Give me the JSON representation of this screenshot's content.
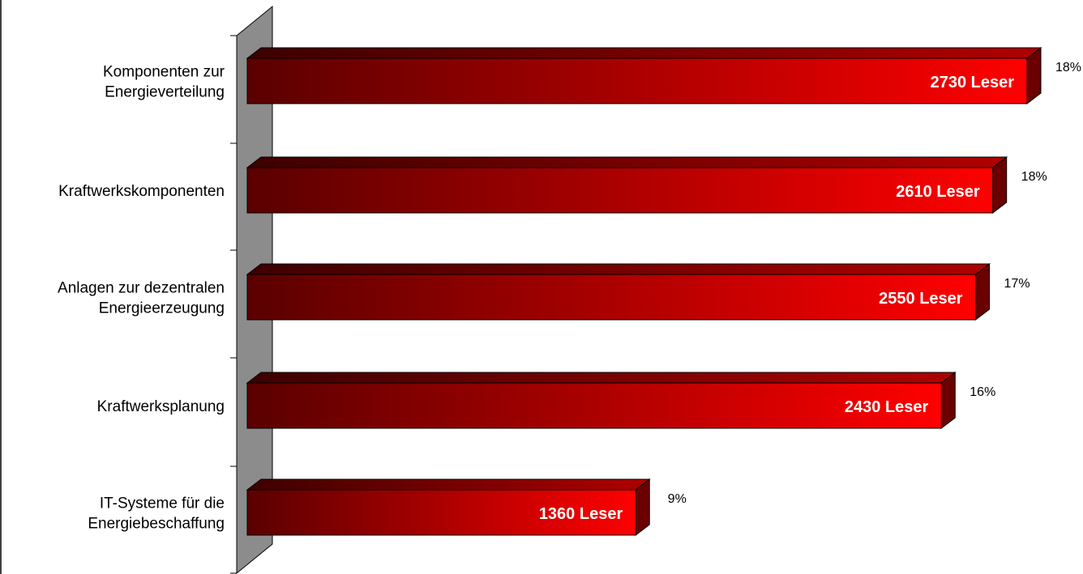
{
  "chart_data": {
    "type": "bar",
    "orientation": "horizontal",
    "style": "3d",
    "categories": [
      [
        "Komponenten zur",
        "Energieverteilung"
      ],
      [
        "Kraftwerkskomponenten"
      ],
      [
        "Anlagen zur dezentralen",
        "Energieerzeugung"
      ],
      [
        "Kraftwerksplanung"
      ],
      [
        "IT-Systeme für die",
        "Energiebeschaffung"
      ]
    ],
    "values": [
      2730,
      2610,
      2550,
      2430,
      1360
    ],
    "value_labels": [
      "2730 Leser",
      "2610 Leser",
      "2550 Leser",
      "2430 Leser",
      "1360 Leser"
    ],
    "percent_labels": [
      "18%",
      "18%",
      "17%",
      "16%",
      "9%"
    ],
    "xlim": [
      0,
      3000
    ],
    "grid": false,
    "legend": "none",
    "title": "",
    "xlabel": "",
    "ylabel": ""
  },
  "colors": {
    "bar_dark": "#5a0000",
    "bar_mid": "#a30000",
    "bar_light": "#ff0000",
    "bar_top": "#7a0000",
    "bar_side": "#6a0000",
    "axis_wall": "#8c8c8c"
  }
}
